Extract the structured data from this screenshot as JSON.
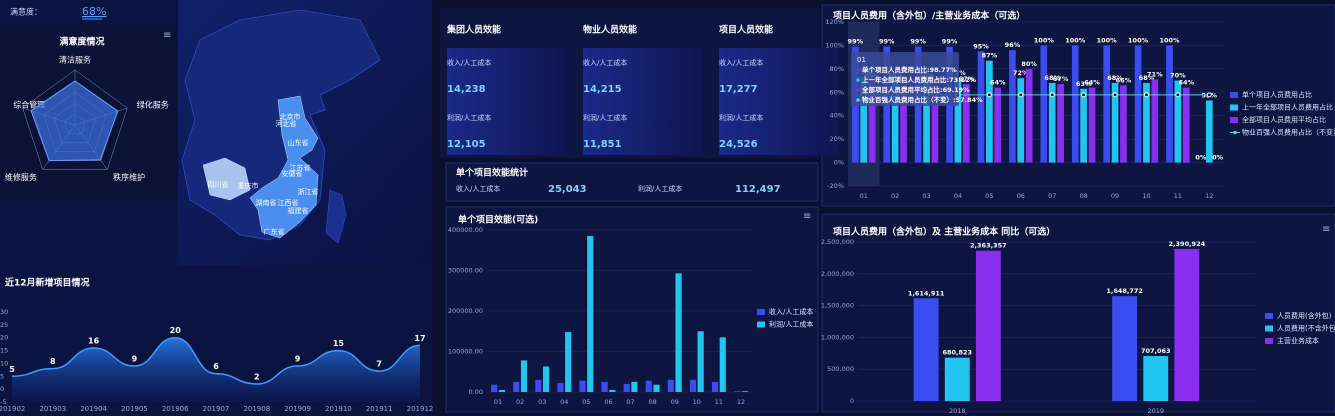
{
  "satisfaction": {
    "label": "满意度：",
    "value": "68%"
  },
  "map": {
    "provinces": [
      "北京市",
      "河北省",
      "山东省",
      "江苏省",
      "安徽省",
      "浙江省",
      "湖南省",
      "江西省",
      "福建省",
      "广东省",
      "四川省",
      "重庆市"
    ]
  },
  "cards": [
    {
      "title": "集团人员效能",
      "rows": [
        {
          "label": "收入/人工成本",
          "value": "14,238"
        },
        {
          "label": "利润/人工成本",
          "value": "12,105"
        }
      ]
    },
    {
      "title": "物业人员效能",
      "rows": [
        {
          "label": "收入/人工成本",
          "value": "14,215"
        },
        {
          "label": "利润/人工成本",
          "value": "11,851"
        }
      ]
    },
    {
      "title": "项目人员效能",
      "rows": [
        {
          "label": "收入/人工成本",
          "value": "17,277"
        },
        {
          "label": "利润/人工成本",
          "value": "24,526"
        }
      ]
    }
  ],
  "project_stats": {
    "title": "单个项目效能统计",
    "rows": [
      {
        "label": "收入/人工成本",
        "value": "25,043"
      },
      {
        "label": "利润/人工成本",
        "value": "112,497"
      }
    ]
  },
  "chart_data": [
    {
      "type": "radar",
      "title": "满意度情况",
      "indicators": [
        "清洁服务",
        "绿化服务",
        "秩序维护",
        "维修服务",
        "综合管理"
      ],
      "values": [
        80,
        82,
        78,
        80,
        84
      ],
      "max": 100,
      "color": "#3a6cd8"
    },
    {
      "type": "area",
      "title": "近12月新增项目情况",
      "categories": [
        "201902",
        "201903",
        "201904",
        "201905",
        "201906",
        "201907",
        "201908",
        "201909",
        "201910",
        "201911",
        "201912"
      ],
      "values": [
        5,
        8,
        16,
        9,
        20,
        6,
        2,
        9,
        15,
        7,
        17
      ],
      "ylim": [
        -5,
        30
      ],
      "yticks": [
        -5,
        0,
        5,
        10,
        15,
        20,
        25,
        30
      ],
      "color": "#2a7ef0"
    },
    {
      "type": "bar",
      "title": "单个项目效能(可选)",
      "categories": [
        "01",
        "02",
        "03",
        "04",
        "05",
        "06",
        "07",
        "08",
        "09",
        "10",
        "11",
        "12"
      ],
      "series": [
        {
          "name": "收入/人工成本",
          "color": "#3b4cf0",
          "values": [
            18000,
            25000,
            30000,
            22000,
            28000,
            25000,
            20000,
            28000,
            30000,
            30000,
            25000,
            2000
          ]
        },
        {
          "name": "利润/人工成本",
          "color": "#22c4f0",
          "values": [
            5000,
            78000,
            63000,
            148000,
            385000,
            5000,
            25000,
            18000,
            293000,
            150000,
            135000,
            2000
          ]
        }
      ],
      "ylim": [
        0,
        400000
      ],
      "yticks": [
        {
          "value": 0,
          "label": "0.00"
        },
        {
          "value": 100000,
          "label": "100000.00"
        },
        {
          "value": 200000,
          "label": "200000.00"
        },
        {
          "value": 300000,
          "label": "300000.00"
        },
        {
          "value": 400000,
          "label": "400000.00"
        }
      ],
      "grid": true
    },
    {
      "type": "bar",
      "title": "项目人员费用（含外包）/主营业务成本（可选）",
      "categories": [
        "01",
        "02",
        "03",
        "04",
        "05",
        "06",
        "07",
        "08",
        "09",
        "10",
        "11",
        "12"
      ],
      "series": [
        {
          "name": "单个项目人员费用占比",
          "color": "#3b4cf0",
          "values": [
            99,
            99,
            99,
            99,
            95,
            96,
            100,
            100,
            100,
            100,
            100,
            0
          ],
          "value_labels": [
            "99%",
            "99%",
            "99%",
            "99%",
            "95%",
            "96%",
            "100%",
            "100%",
            "100%",
            "100%",
            "100%",
            "0%"
          ]
        },
        {
          "name": "上一年全部项目人员费用占比",
          "color": "#22c4f0",
          "values": [
            73,
            70,
            70,
            72,
            87,
            72,
            68,
            63,
            68,
            68,
            70,
            53
          ],
          "value_labels": [
            "73%",
            "70%",
            "70%",
            "72%",
            "87%",
            "72%",
            "68%",
            "63%",
            "68%",
            "68%",
            "70%",
            "53%"
          ]
        },
        {
          "name": "全部项目人员费用平均占比",
          "color": "#8a2ef0",
          "values": [
            69,
            66,
            66,
            67,
            64,
            80,
            67,
            64,
            66,
            71,
            64,
            0
          ],
          "value_labels": [
            "69%",
            "66%",
            "66%",
            "67%",
            "64%",
            "80%",
            "67%",
            "64%",
            "66%",
            "71%",
            "64%",
            "0%"
          ]
        },
        {
          "name": "物业百强人员费用占比（不变）",
          "color": "#4fd2e8",
          "kind": "line",
          "values": [
            57.84,
            57.84,
            57.84,
            57.84,
            57.84,
            57.84,
            57.84,
            57.84,
            57.84,
            57.84,
            57.84,
            57.84
          ]
        }
      ],
      "ylim": [
        -20,
        120
      ],
      "yticks": [
        {
          "value": -20,
          "label": "-20%"
        },
        {
          "value": 0,
          "label": "0%"
        },
        {
          "value": 20,
          "label": "20%"
        },
        {
          "value": 40,
          "label": "40%"
        },
        {
          "value": 60,
          "label": "60%"
        },
        {
          "value": 80,
          "label": "80%"
        },
        {
          "value": 100,
          "label": "100%"
        },
        {
          "value": 120,
          "label": "120%"
        }
      ],
      "grid": true,
      "tooltip": {
        "title": "01",
        "lines": [
          "单个项目人员费用占比:98.77%",
          "上一年全部项目人员费用占比:73.12%",
          "全部项目人员费用平均占比:69.19%",
          "物业百强人员费用占比（不变）:57.84%"
        ]
      }
    },
    {
      "type": "bar",
      "title": "项目人员费用（含外包）及 主营业务成本 同比（可选）",
      "categories": [
        "2018",
        "2019"
      ],
      "series": [
        {
          "name": "人员费用(含外包)",
          "color": "#3b4cf0",
          "values": [
            1614911,
            1648772
          ],
          "value_labels": [
            "1,614,911",
            "1,648,772"
          ]
        },
        {
          "name": "人员费用(不含外包)",
          "color": "#22c4f0",
          "values": [
            680823,
            707063
          ],
          "value_labels": [
            "680,823",
            "707,063"
          ]
        },
        {
          "name": "主营业务成本",
          "color": "#8a2ef0",
          "values": [
            2363357,
            2390924
          ],
          "value_labels": [
            "2,363,357",
            "2,390,924"
          ]
        }
      ],
      "ylim": [
        0,
        2500000
      ],
      "yticks": [
        0,
        {
          "value": 500000,
          "label": "500,000"
        },
        {
          "value": 1000000,
          "label": "1,000,000"
        },
        {
          "value": 1500000,
          "label": "1,500,000"
        },
        {
          "value": 2000000,
          "label": "2,000,000"
        },
        {
          "value": 2500000,
          "label": "2,500,000"
        }
      ],
      "grid": true
    }
  ]
}
